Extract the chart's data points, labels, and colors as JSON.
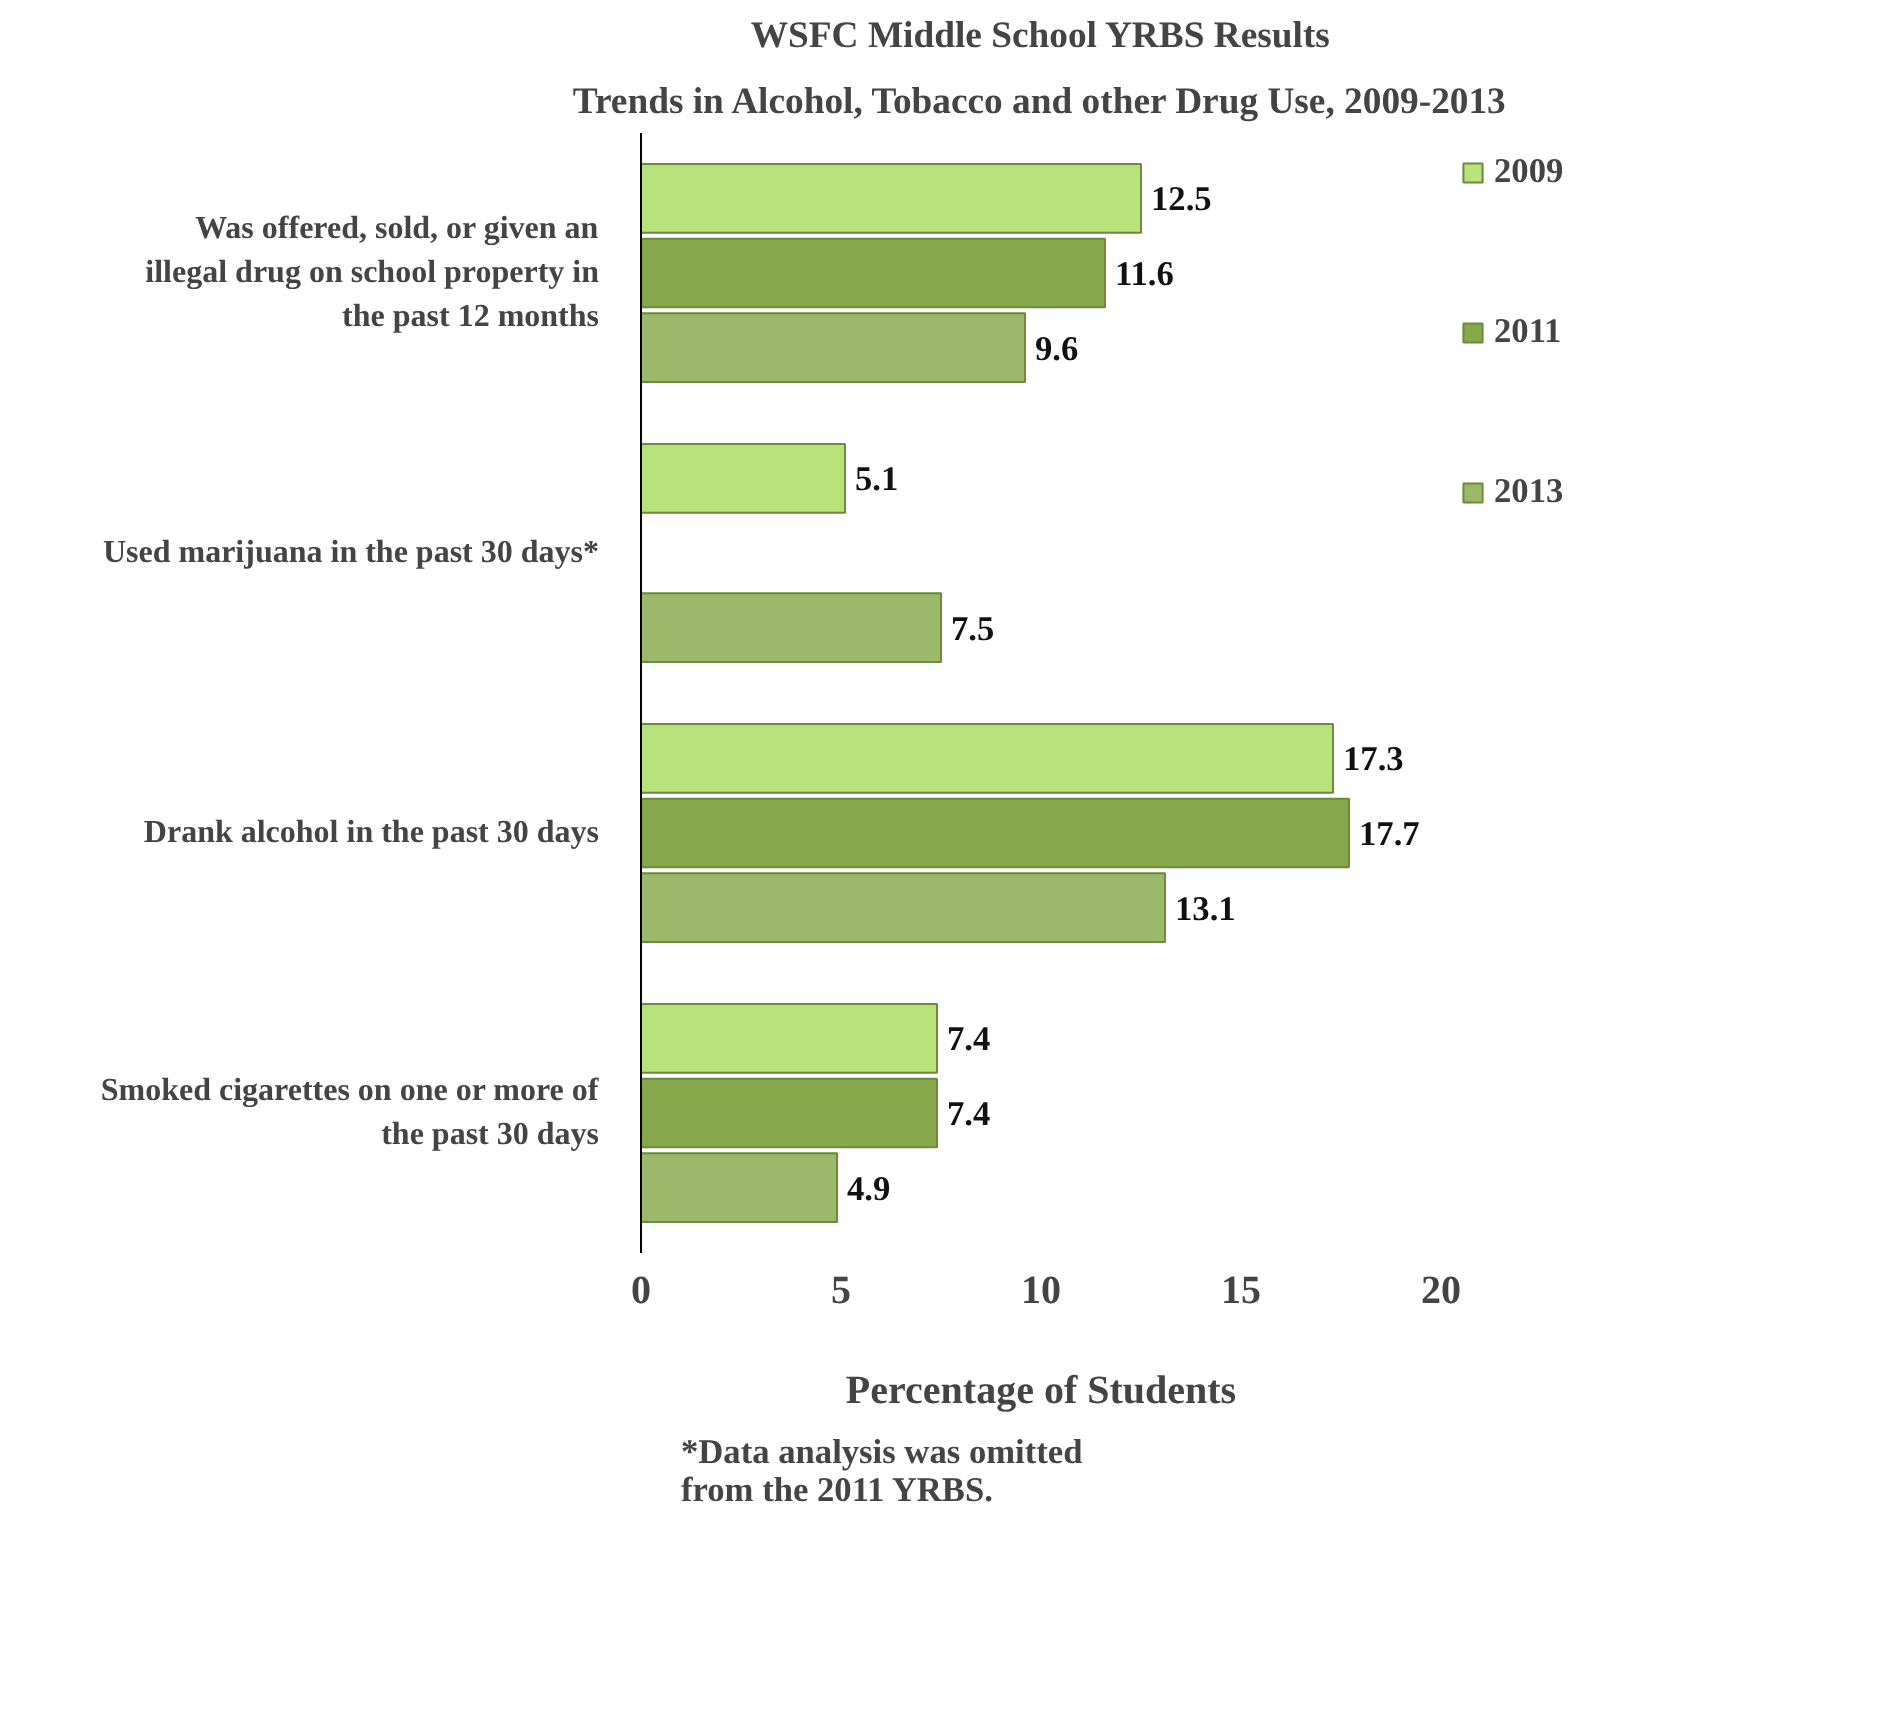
{
  "chart_data": {
    "type": "bar",
    "orientation": "horizontal",
    "title": "WSFC Middle School YRBS Results",
    "subtitle": "Trends in Alcohol, Tobacco and other Drug Use, 2009-2013",
    "categories": [
      "Was offered, sold, or given an illegal drug on school property in the past 12 months",
      "Used marijuana in the past 30 days*",
      "Drank alcohol in the past 30 days",
      "Smoked cigarettes on one or more of the past 30 days"
    ],
    "series": [
      {
        "name": "2009",
        "color": "#b8e27c",
        "values": [
          12.5,
          5.1,
          17.3,
          7.4
        ]
      },
      {
        "name": "2011",
        "color": "#84a84a",
        "values": [
          11.6,
          null,
          17.7,
          7.4
        ]
      },
      {
        "name": "2013",
        "color": "#9cb86a",
        "values": [
          9.6,
          7.5,
          13.1,
          4.9
        ]
      }
    ],
    "xlim": [
      0,
      20
    ],
    "xticks": [
      0,
      5,
      10,
      15,
      20
    ],
    "xlabel": "Percentage of Students",
    "data_labels": true,
    "grid": false,
    "legend": "right",
    "annotations": [
      "*Data analysis was omitted from the 2011 YRBS."
    ]
  }
}
